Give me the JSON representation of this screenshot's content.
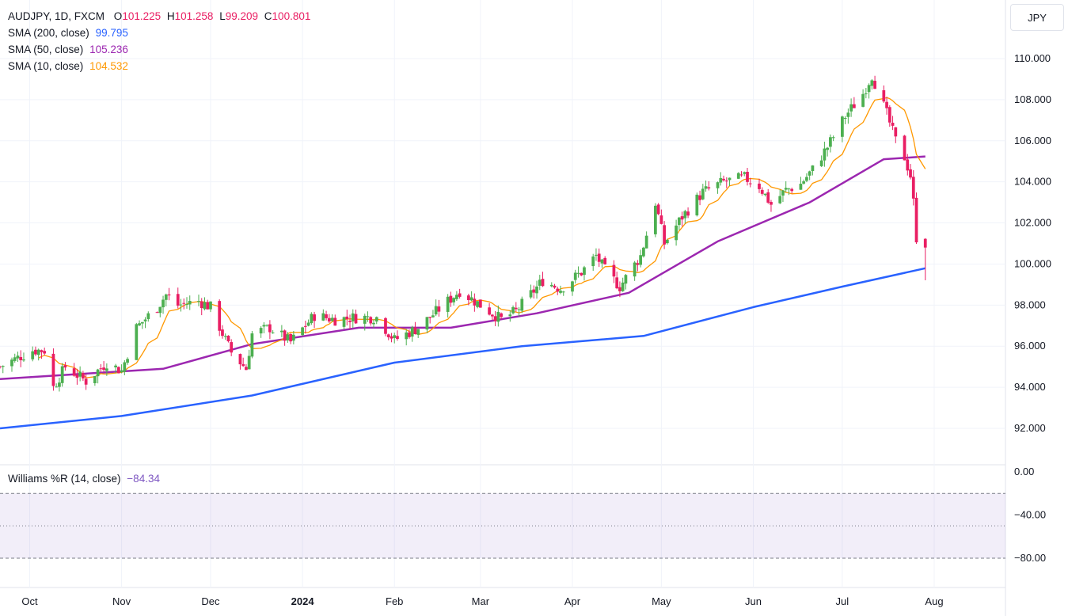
{
  "header": {
    "symbol": "AUDJPY, 1D, FXCM",
    "open_label": "O",
    "open": "101.225",
    "high_label": "H",
    "high": "101.258",
    "low_label": "L",
    "low": "99.209",
    "close_label": "C",
    "close": "100.801",
    "currency_button": "JPY"
  },
  "indicators": [
    {
      "label": "SMA (200, close)",
      "value": "99.795",
      "color": "#2962ff"
    },
    {
      "label": "SMA (50, close)",
      "value": "105.236",
      "color": "#9c27b0"
    },
    {
      "label": "SMA (10, close)",
      "value": "104.532",
      "color": "#ff9800"
    }
  ],
  "oscillator": {
    "label": "Williams %R (14, close)",
    "value": "−84.34",
    "color": "#7e57c2",
    "upper_band": -20,
    "middle_band": -50,
    "lower_band": -80
  },
  "colors": {
    "up": "#4caf50",
    "down": "#e91e63",
    "grid": "#f0f3fa",
    "axis_text": "#131722"
  },
  "chart_data": [
    {
      "type": "candlestick",
      "price_axis_ticks": [
        "110.000",
        "108.000",
        "106.000",
        "104.000",
        "102.000",
        "100.000",
        "98.000",
        "96.000",
        "94.000",
        "92.000"
      ],
      "ylim": [
        91,
        111
      ],
      "time_axis_labels": [
        "Oct",
        "Nov",
        "Dec",
        "2024",
        "Feb",
        "Mar",
        "Apr",
        "May",
        "Jun",
        "Jul",
        "Aug"
      ],
      "x_range": [
        "2023-09-21",
        "2024-08-01"
      ],
      "key_points": [
        {
          "date": "2023-09-21",
          "close": 95.0
        },
        {
          "date": "2023-10-02",
          "close": 95.8
        },
        {
          "date": "2023-10-06",
          "close": 95.8
        },
        {
          "date": "2023-10-09",
          "close": 94.0
        },
        {
          "date": "2023-10-13",
          "close": 95.0
        },
        {
          "date": "2023-10-20",
          "close": 94.3
        },
        {
          "date": "2023-10-27",
          "close": 95.2
        },
        {
          "date": "2023-11-01",
          "close": 94.8
        },
        {
          "date": "2023-11-06",
          "close": 96.9
        },
        {
          "date": "2023-11-13",
          "close": 97.9
        },
        {
          "date": "2023-11-16",
          "close": 98.5
        },
        {
          "date": "2023-11-20",
          "close": 98.0
        },
        {
          "date": "2023-11-27",
          "close": 98.2
        },
        {
          "date": "2023-12-01",
          "close": 97.9
        },
        {
          "date": "2023-12-06",
          "close": 96.3
        },
        {
          "date": "2023-12-08",
          "close": 95.7
        },
        {
          "date": "2023-12-13",
          "close": 94.9
        },
        {
          "date": "2023-12-15",
          "close": 96.6
        },
        {
          "date": "2023-12-21",
          "close": 96.9
        },
        {
          "date": "2023-12-28",
          "close": 96.2
        },
        {
          "date": "2024-01-05",
          "close": 97.5
        },
        {
          "date": "2024-01-12",
          "close": 97.3
        },
        {
          "date": "2024-01-19",
          "close": 97.4
        },
        {
          "date": "2024-01-26",
          "close": 97.4
        },
        {
          "date": "2024-02-01",
          "close": 96.3
        },
        {
          "date": "2024-02-09",
          "close": 96.9
        },
        {
          "date": "2024-02-16",
          "close": 97.8
        },
        {
          "date": "2024-02-23",
          "close": 98.7
        },
        {
          "date": "2024-03-01",
          "close": 98.0
        },
        {
          "date": "2024-03-08",
          "close": 97.3
        },
        {
          "date": "2024-03-13",
          "close": 97.7
        },
        {
          "date": "2024-03-19",
          "close": 98.7
        },
        {
          "date": "2024-03-22",
          "close": 99.2
        },
        {
          "date": "2024-03-28",
          "close": 98.8
        },
        {
          "date": "2024-04-04",
          "close": 99.6
        },
        {
          "date": "2024-04-09",
          "close": 100.4
        },
        {
          "date": "2024-04-12",
          "close": 99.7
        },
        {
          "date": "2024-04-17",
          "close": 98.9
        },
        {
          "date": "2024-04-24",
          "close": 100.4
        },
        {
          "date": "2024-04-29",
          "close": 103.0
        },
        {
          "date": "2024-05-02",
          "close": 101.0
        },
        {
          "date": "2024-05-08",
          "close": 102.3
        },
        {
          "date": "2024-05-15",
          "close": 103.5
        },
        {
          "date": "2024-05-22",
          "close": 104.0
        },
        {
          "date": "2024-05-29",
          "close": 104.2
        },
        {
          "date": "2024-06-03",
          "close": 103.8
        },
        {
          "date": "2024-06-07",
          "close": 102.9
        },
        {
          "date": "2024-06-12",
          "close": 103.6
        },
        {
          "date": "2024-06-17",
          "close": 103.9
        },
        {
          "date": "2024-06-21",
          "close": 104.6
        },
        {
          "date": "2024-06-26",
          "close": 105.7
        },
        {
          "date": "2024-07-02",
          "close": 107.2
        },
        {
          "date": "2024-07-08",
          "close": 108.3
        },
        {
          "date": "2024-07-11",
          "close": 109.2
        },
        {
          "date": "2024-07-16",
          "close": 107.3
        },
        {
          "date": "2024-07-19",
          "close": 106.0
        },
        {
          "date": "2024-07-22",
          "close": 105.2
        },
        {
          "date": "2024-07-24",
          "close": 104.3
        },
        {
          "date": "2024-07-25",
          "close": 103.0
        },
        {
          "date": "2024-07-26",
          "close": 101.3
        },
        {
          "date": "2024-07-29",
          "close": 100.8
        }
      ],
      "last_bar": {
        "open": 101.225,
        "high": 101.258,
        "low": 99.209,
        "close": 100.801
      },
      "series": [
        {
          "name": "SMA (200, close)",
          "color": "#2962ff",
          "points": [
            [
              "2023-09-21",
              92.0
            ],
            [
              "2023-11-01",
              92.6
            ],
            [
              "2023-12-15",
              93.6
            ],
            [
              "2024-02-01",
              95.2
            ],
            [
              "2024-03-15",
              96.0
            ],
            [
              "2024-04-25",
              96.5
            ],
            [
              "2024-06-01",
              97.9
            ],
            [
              "2024-07-01",
              98.9
            ],
            [
              "2024-07-29",
              99.795
            ]
          ]
        },
        {
          "name": "SMA (50, close)",
          "color": "#9c27b0",
          "points": [
            [
              "2023-09-21",
              94.4
            ],
            [
              "2023-11-15",
              94.9
            ],
            [
              "2023-12-15",
              96.1
            ],
            [
              "2024-01-20",
              96.9
            ],
            [
              "2024-02-20",
              96.9
            ],
            [
              "2024-03-20",
              97.6
            ],
            [
              "2024-04-20",
              98.6
            ],
            [
              "2024-05-20",
              101.1
            ],
            [
              "2024-06-20",
              103.0
            ],
            [
              "2024-07-15",
              105.1
            ],
            [
              "2024-07-29",
              105.236
            ]
          ]
        },
        {
          "name": "SMA (10, close)",
          "color": "#ff9800",
          "points": []
        }
      ],
      "grid": true
    },
    {
      "type": "line",
      "name": "Williams %R (14, close)",
      "ylim": [
        -100,
        0
      ],
      "y_axis_ticks": [
        "0.00",
        "−40.00",
        "−80.00"
      ],
      "bands": [
        -20,
        -50,
        -80
      ]
    }
  ]
}
